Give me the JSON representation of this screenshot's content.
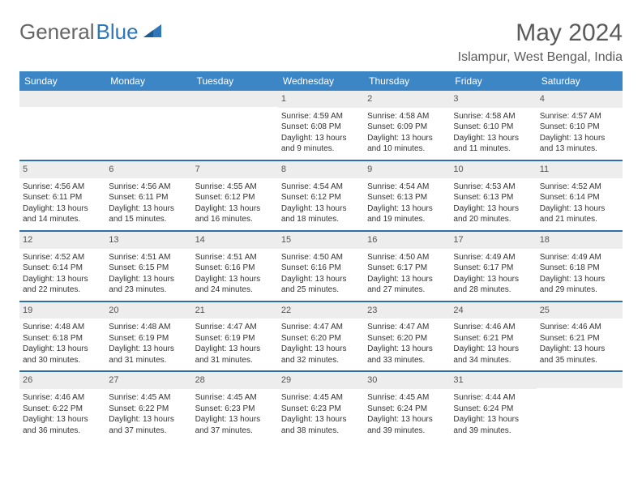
{
  "brand": {
    "part1": "General",
    "part2": "Blue"
  },
  "title": "May 2024",
  "location": "Islampur, West Bengal, India",
  "colors": {
    "header_bg": "#3d86c6",
    "header_text": "#ffffff",
    "date_bg": "#ededed",
    "divider": "#2f6fa8",
    "brand_gray": "#666666",
    "brand_blue": "#2f77b8"
  },
  "day_headers": [
    "Sunday",
    "Monday",
    "Tuesday",
    "Wednesday",
    "Thursday",
    "Friday",
    "Saturday"
  ],
  "weeks": [
    [
      {
        "date": "",
        "sunrise": "",
        "sunset": "",
        "daylight": ""
      },
      {
        "date": "",
        "sunrise": "",
        "sunset": "",
        "daylight": ""
      },
      {
        "date": "",
        "sunrise": "",
        "sunset": "",
        "daylight": ""
      },
      {
        "date": "1",
        "sunrise": "Sunrise: 4:59 AM",
        "sunset": "Sunset: 6:08 PM",
        "daylight": "Daylight: 13 hours and 9 minutes."
      },
      {
        "date": "2",
        "sunrise": "Sunrise: 4:58 AM",
        "sunset": "Sunset: 6:09 PM",
        "daylight": "Daylight: 13 hours and 10 minutes."
      },
      {
        "date": "3",
        "sunrise": "Sunrise: 4:58 AM",
        "sunset": "Sunset: 6:10 PM",
        "daylight": "Daylight: 13 hours and 11 minutes."
      },
      {
        "date": "4",
        "sunrise": "Sunrise: 4:57 AM",
        "sunset": "Sunset: 6:10 PM",
        "daylight": "Daylight: 13 hours and 13 minutes."
      }
    ],
    [
      {
        "date": "5",
        "sunrise": "Sunrise: 4:56 AM",
        "sunset": "Sunset: 6:11 PM",
        "daylight": "Daylight: 13 hours and 14 minutes."
      },
      {
        "date": "6",
        "sunrise": "Sunrise: 4:56 AM",
        "sunset": "Sunset: 6:11 PM",
        "daylight": "Daylight: 13 hours and 15 minutes."
      },
      {
        "date": "7",
        "sunrise": "Sunrise: 4:55 AM",
        "sunset": "Sunset: 6:12 PM",
        "daylight": "Daylight: 13 hours and 16 minutes."
      },
      {
        "date": "8",
        "sunrise": "Sunrise: 4:54 AM",
        "sunset": "Sunset: 6:12 PM",
        "daylight": "Daylight: 13 hours and 18 minutes."
      },
      {
        "date": "9",
        "sunrise": "Sunrise: 4:54 AM",
        "sunset": "Sunset: 6:13 PM",
        "daylight": "Daylight: 13 hours and 19 minutes."
      },
      {
        "date": "10",
        "sunrise": "Sunrise: 4:53 AM",
        "sunset": "Sunset: 6:13 PM",
        "daylight": "Daylight: 13 hours and 20 minutes."
      },
      {
        "date": "11",
        "sunrise": "Sunrise: 4:52 AM",
        "sunset": "Sunset: 6:14 PM",
        "daylight": "Daylight: 13 hours and 21 minutes."
      }
    ],
    [
      {
        "date": "12",
        "sunrise": "Sunrise: 4:52 AM",
        "sunset": "Sunset: 6:14 PM",
        "daylight": "Daylight: 13 hours and 22 minutes."
      },
      {
        "date": "13",
        "sunrise": "Sunrise: 4:51 AM",
        "sunset": "Sunset: 6:15 PM",
        "daylight": "Daylight: 13 hours and 23 minutes."
      },
      {
        "date": "14",
        "sunrise": "Sunrise: 4:51 AM",
        "sunset": "Sunset: 6:16 PM",
        "daylight": "Daylight: 13 hours and 24 minutes."
      },
      {
        "date": "15",
        "sunrise": "Sunrise: 4:50 AM",
        "sunset": "Sunset: 6:16 PM",
        "daylight": "Daylight: 13 hours and 25 minutes."
      },
      {
        "date": "16",
        "sunrise": "Sunrise: 4:50 AM",
        "sunset": "Sunset: 6:17 PM",
        "daylight": "Daylight: 13 hours and 27 minutes."
      },
      {
        "date": "17",
        "sunrise": "Sunrise: 4:49 AM",
        "sunset": "Sunset: 6:17 PM",
        "daylight": "Daylight: 13 hours and 28 minutes."
      },
      {
        "date": "18",
        "sunrise": "Sunrise: 4:49 AM",
        "sunset": "Sunset: 6:18 PM",
        "daylight": "Daylight: 13 hours and 29 minutes."
      }
    ],
    [
      {
        "date": "19",
        "sunrise": "Sunrise: 4:48 AM",
        "sunset": "Sunset: 6:18 PM",
        "daylight": "Daylight: 13 hours and 30 minutes."
      },
      {
        "date": "20",
        "sunrise": "Sunrise: 4:48 AM",
        "sunset": "Sunset: 6:19 PM",
        "daylight": "Daylight: 13 hours and 31 minutes."
      },
      {
        "date": "21",
        "sunrise": "Sunrise: 4:47 AM",
        "sunset": "Sunset: 6:19 PM",
        "daylight": "Daylight: 13 hours and 31 minutes."
      },
      {
        "date": "22",
        "sunrise": "Sunrise: 4:47 AM",
        "sunset": "Sunset: 6:20 PM",
        "daylight": "Daylight: 13 hours and 32 minutes."
      },
      {
        "date": "23",
        "sunrise": "Sunrise: 4:47 AM",
        "sunset": "Sunset: 6:20 PM",
        "daylight": "Daylight: 13 hours and 33 minutes."
      },
      {
        "date": "24",
        "sunrise": "Sunrise: 4:46 AM",
        "sunset": "Sunset: 6:21 PM",
        "daylight": "Daylight: 13 hours and 34 minutes."
      },
      {
        "date": "25",
        "sunrise": "Sunrise: 4:46 AM",
        "sunset": "Sunset: 6:21 PM",
        "daylight": "Daylight: 13 hours and 35 minutes."
      }
    ],
    [
      {
        "date": "26",
        "sunrise": "Sunrise: 4:46 AM",
        "sunset": "Sunset: 6:22 PM",
        "daylight": "Daylight: 13 hours and 36 minutes."
      },
      {
        "date": "27",
        "sunrise": "Sunrise: 4:45 AM",
        "sunset": "Sunset: 6:22 PM",
        "daylight": "Daylight: 13 hours and 37 minutes."
      },
      {
        "date": "28",
        "sunrise": "Sunrise: 4:45 AM",
        "sunset": "Sunset: 6:23 PM",
        "daylight": "Daylight: 13 hours and 37 minutes."
      },
      {
        "date": "29",
        "sunrise": "Sunrise: 4:45 AM",
        "sunset": "Sunset: 6:23 PM",
        "daylight": "Daylight: 13 hours and 38 minutes."
      },
      {
        "date": "30",
        "sunrise": "Sunrise: 4:45 AM",
        "sunset": "Sunset: 6:24 PM",
        "daylight": "Daylight: 13 hours and 39 minutes."
      },
      {
        "date": "31",
        "sunrise": "Sunrise: 4:44 AM",
        "sunset": "Sunset: 6:24 PM",
        "daylight": "Daylight: 13 hours and 39 minutes."
      },
      {
        "date": "",
        "sunrise": "",
        "sunset": "",
        "daylight": ""
      }
    ]
  ]
}
